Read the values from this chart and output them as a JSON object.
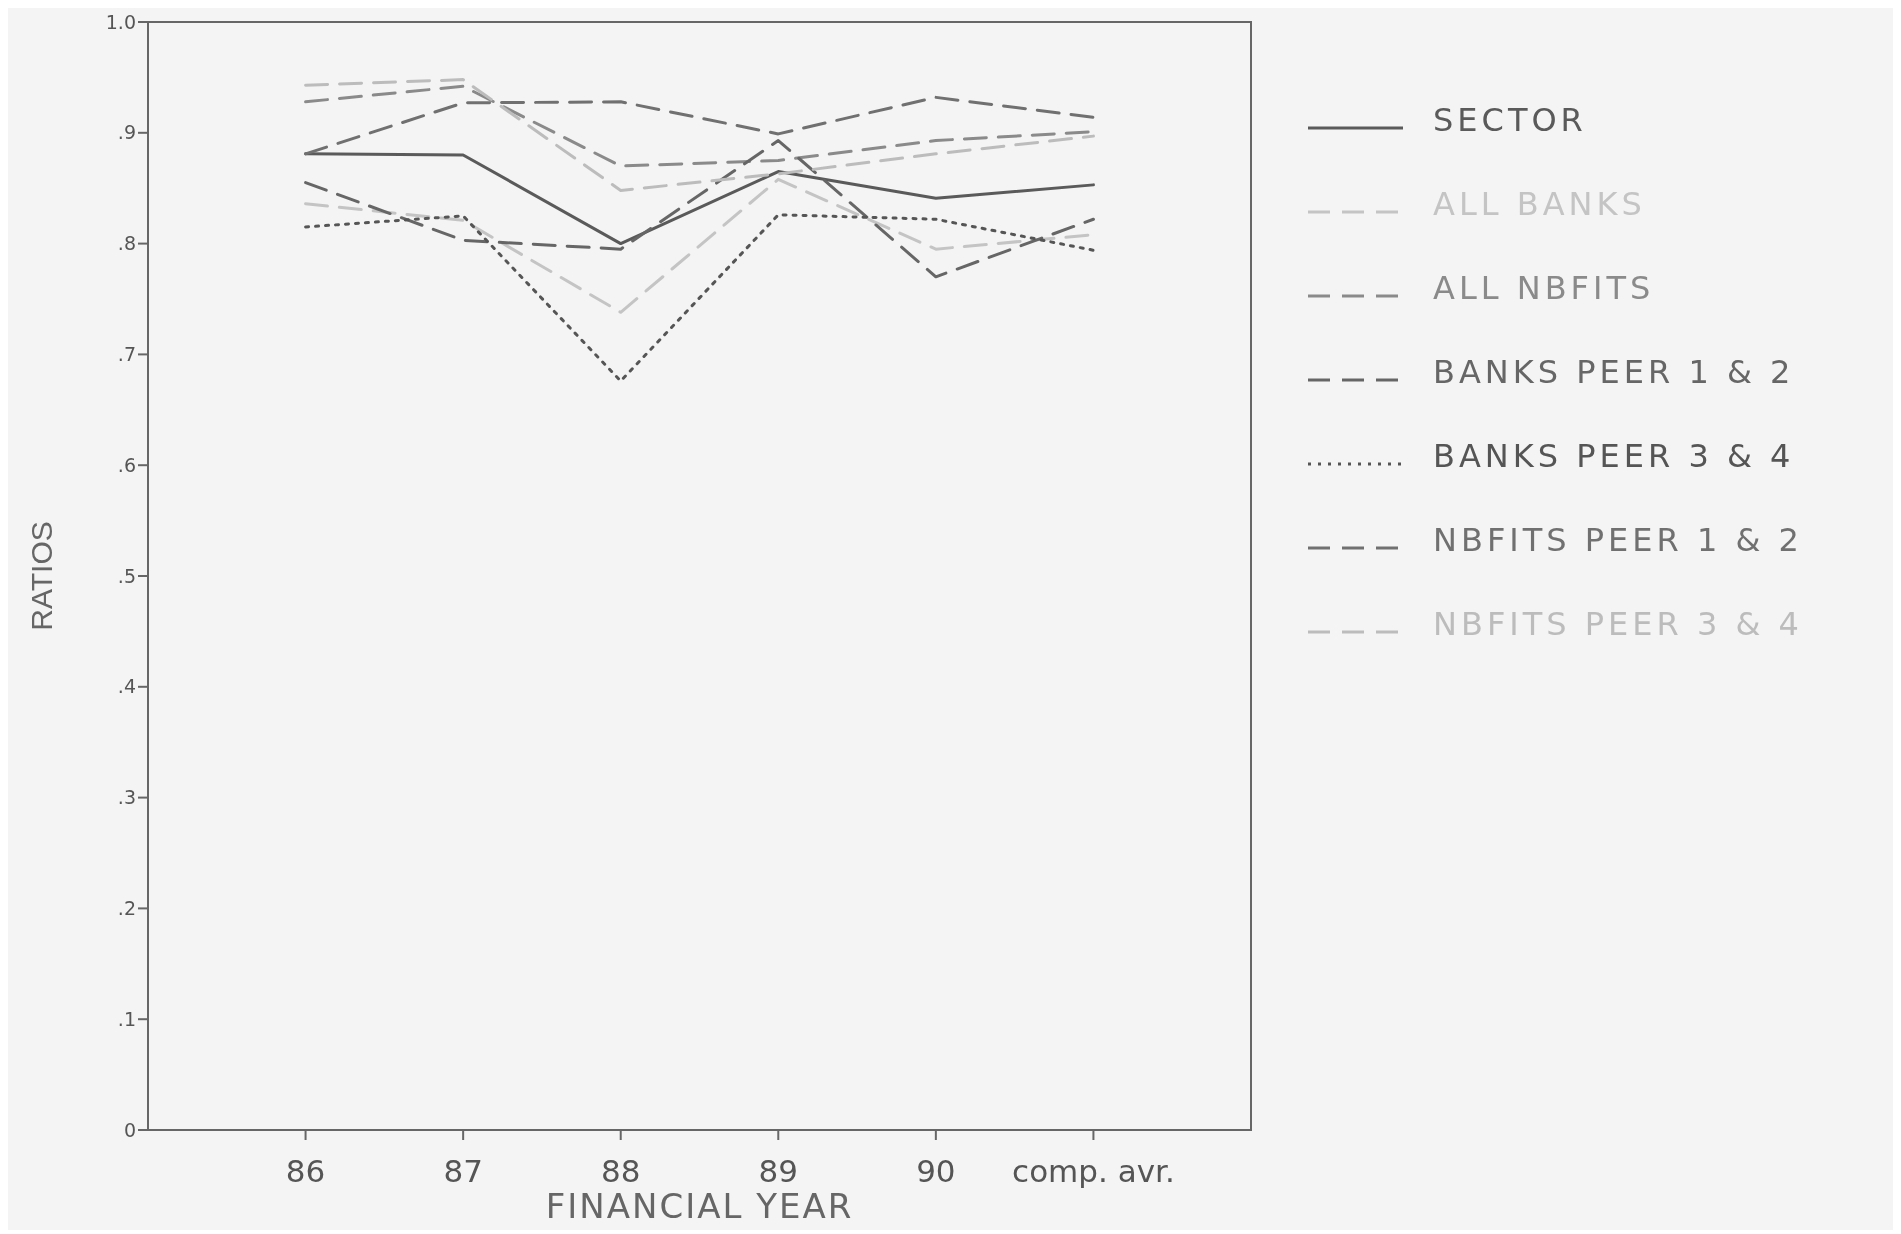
{
  "chart_data": {
    "type": "line",
    "xlabel": "FINANCIAL YEAR",
    "ylabel": "RATIOS",
    "categories": [
      "86",
      "87",
      "88",
      "89",
      "90",
      "comp. avr."
    ],
    "ylim": [
      0,
      1
    ],
    "yticks": [
      0,
      {
        "value": 0.1,
        "label": ".1"
      },
      {
        "value": 0.2,
        "label": ".2"
      },
      {
        "value": 0.3,
        "label": ".3"
      },
      {
        "value": 0.4,
        "label": ".4"
      },
      {
        "value": 0.5,
        "label": ".5"
      },
      {
        "value": 0.6,
        "label": ".6"
      },
      {
        "value": 0.7,
        "label": ".7"
      },
      {
        "value": 0.8,
        "label": ".8"
      },
      {
        "value": 0.9,
        "label": ".9"
      },
      {
        "value": 1,
        "label": "1.0"
      }
    ],
    "grid": false,
    "legend": "right",
    "series": [
      {
        "name": "SECTOR",
        "color": "#5a5a5a",
        "line_style": "solid",
        "values": [
          0.881,
          0.88,
          0.8,
          0.865,
          0.841,
          0.853
        ]
      },
      {
        "name": "ALL BANKS",
        "color": "#c4c4c4",
        "line_style": "dashed",
        "values": [
          0.836,
          0.821,
          0.738,
          0.858,
          0.795,
          0.808
        ]
      },
      {
        "name": "ALL NBFITS",
        "color": "#8a8a8a",
        "line_style": "dashed",
        "values": [
          0.928,
          0.942,
          0.87,
          0.875,
          0.893,
          0.901
        ]
      },
      {
        "name": "BANKS PEER 1 & 2",
        "color": "#666666",
        "line_style": "dashed",
        "values": [
          0.855,
          0.803,
          0.795,
          0.893,
          0.77,
          0.822
        ]
      },
      {
        "name": "BANKS PEER 3 & 4",
        "color": "#555555",
        "line_style": "dotted",
        "values": [
          0.815,
          0.825,
          0.676,
          0.826,
          0.822,
          0.794
        ]
      },
      {
        "name": "NBFITS PEER 1 & 2",
        "color": "#707070",
        "line_style": "dashed",
        "values": [
          0.881,
          0.927,
          0.928,
          0.899,
          0.932,
          0.914
        ]
      },
      {
        "name": "NBFITS PEER 3 & 4",
        "color": "#bcbcbc",
        "line_style": "dashed",
        "values": [
          0.943,
          0.948,
          0.848,
          0.863,
          0.881,
          0.897
        ]
      }
    ]
  }
}
